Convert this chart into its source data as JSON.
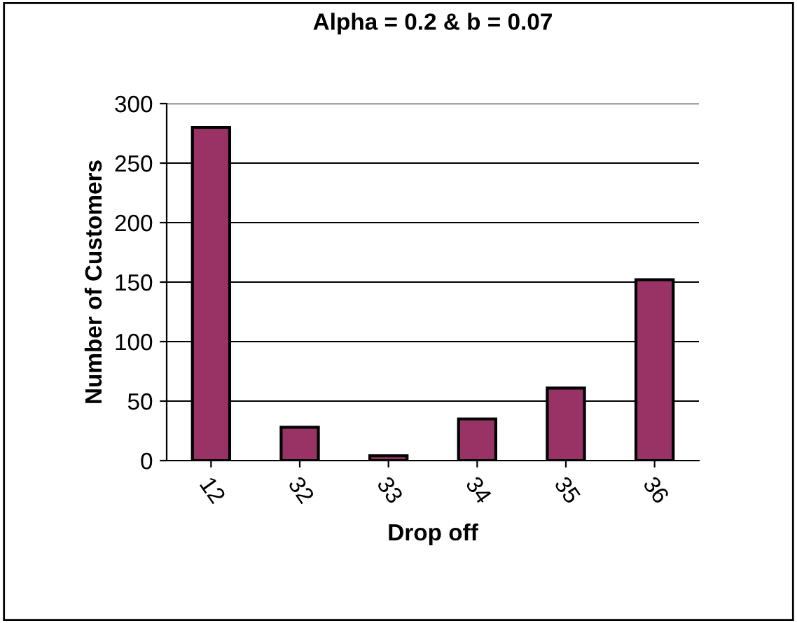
{
  "chart_data": {
    "type": "bar",
    "title": "Alpha = 0.2 & b = 0.07",
    "xlabel": "Drop off",
    "ylabel": "Number of Customers",
    "categories": [
      "12",
      "32",
      "33",
      "34",
      "35",
      "36"
    ],
    "values": [
      280,
      28,
      4,
      35,
      61,
      152
    ],
    "color": "#993366",
    "ylim": [
      0,
      300
    ],
    "yticks": [
      0,
      50,
      100,
      150,
      200,
      250,
      300
    ],
    "grid": "y",
    "legend": false
  }
}
